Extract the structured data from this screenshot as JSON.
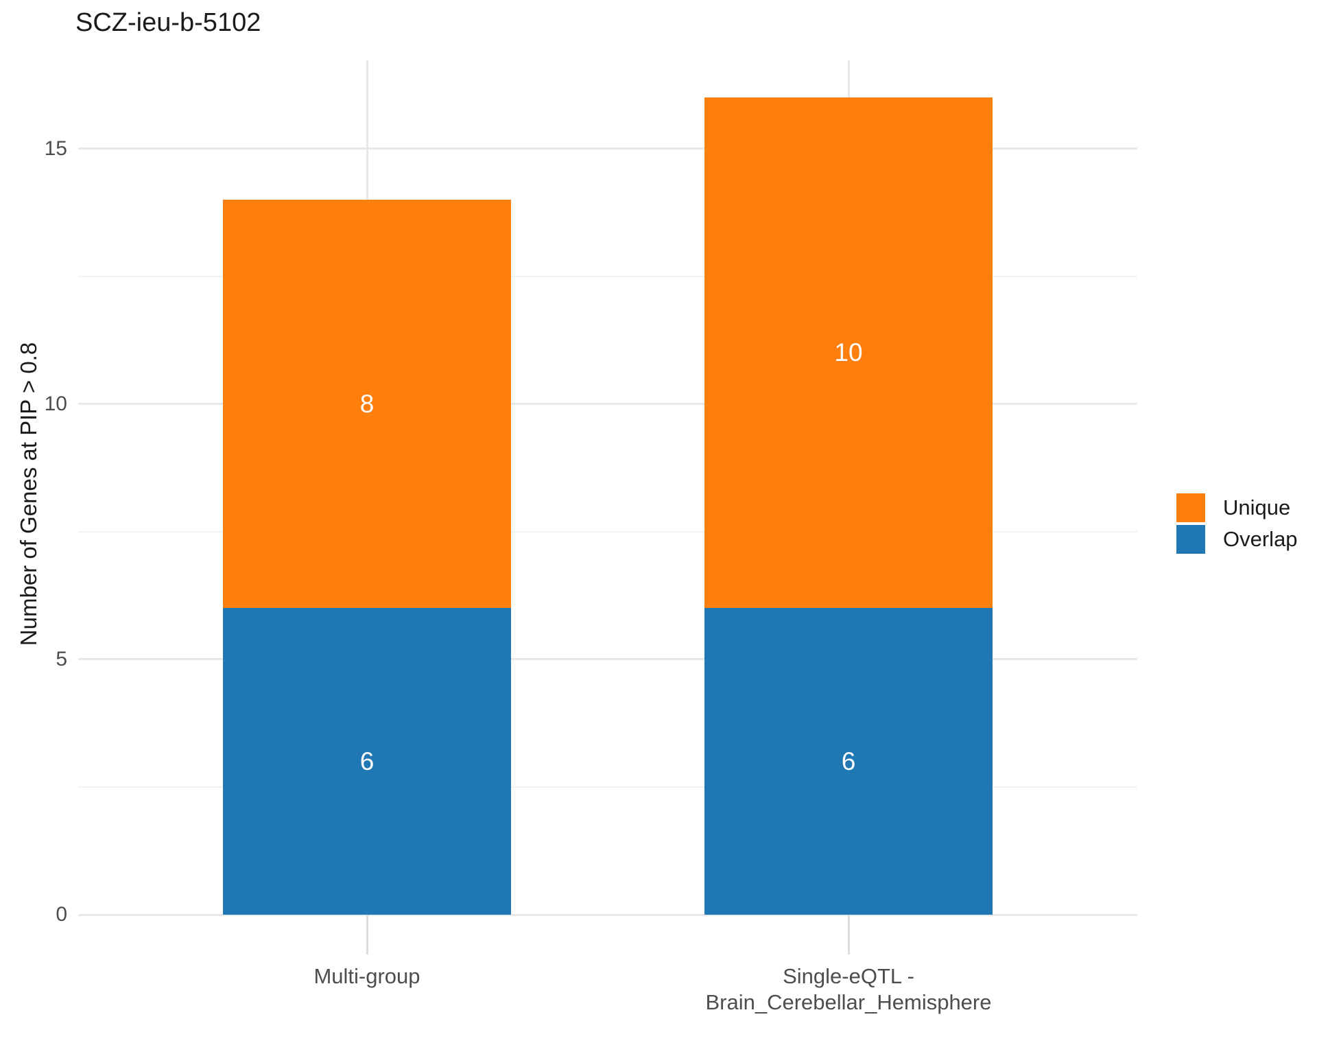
{
  "page": {
    "background_color": "#ffffff"
  },
  "chart_data": {
    "type": "bar",
    "stacked": true,
    "title": "SCZ-ieu-b-5102",
    "xlabel": "",
    "ylabel": "Number of Genes at PIP > 0.8",
    "categories": [
      "Multi-group",
      "Single-eQTL -\nBrain_Cerebellar_Hemisphere"
    ],
    "series": [
      {
        "name": "Overlap",
        "color": "#1f77b4",
        "values": [
          6,
          6
        ]
      },
      {
        "name": "Unique",
        "color": "#ff7f0e",
        "values": [
          8,
          10
        ]
      }
    ],
    "stack_totals": [
      14,
      16
    ],
    "bar_value_labels": [
      [
        6,
        8
      ],
      [
        6,
        10
      ]
    ],
    "y_major_ticks": [
      0,
      5,
      10,
      15
    ],
    "y_minor_ticks": [
      2.5,
      7.5,
      12.5
    ],
    "ylim": [
      0,
      16.73
    ],
    "grid": true,
    "legend": {
      "position": "right",
      "entries": [
        {
          "label": "Unique",
          "color": "#ff7f0e"
        },
        {
          "label": "Overlap",
          "color": "#1f77b4"
        }
      ]
    },
    "colors": {
      "gridline_major": "#e8e8e8",
      "gridline_minor": "#f2f2f2",
      "axis_tick": "#dcdcdc",
      "axis_text": "#4d4d4d",
      "title_text": "#1a1a1a",
      "bar_label_text": "#ffffff"
    }
  }
}
